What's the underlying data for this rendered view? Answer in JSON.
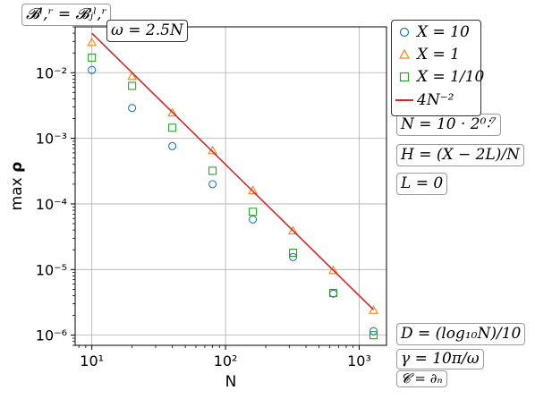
{
  "annotations": {
    "condition": "𝓑ˡ,ʳ = 𝓑ⱼˡ,ʳ",
    "omega": "ω = 2.5N",
    "n_def": "N = 10 · 2⁰∶⁷",
    "h_def": "H = (X − 2L)/N",
    "l_def": "L = 0",
    "d_def": "D = (log₁₀N)/10",
    "gamma_def": "γ = 10π/ω",
    "c_def": "𝓒 = ∂ₙ"
  },
  "legend": {
    "x10": "X = 10",
    "x1": "X = 1",
    "x01": "X = 1/10",
    "fit": "4N⁻²"
  },
  "colors": {
    "x10": "#1f77b4",
    "x1": "#ff7f0e",
    "x01": "#2ca02c",
    "fit": "#d62728",
    "grid": "#b0b0b0"
  },
  "chart_data": {
    "type": "scatter",
    "xlabel": "N",
    "ylabel": "max ρ",
    "xscale": "log",
    "yscale": "log",
    "xlim": [
      7.5,
      1600
    ],
    "ylim": [
      7e-07,
      0.05
    ],
    "grid": true,
    "legend_position": "top-right",
    "x_ticks": [
      {
        "value": 10,
        "label": "10¹"
      },
      {
        "value": 100,
        "label": "10²"
      },
      {
        "value": 1000,
        "label": "10³"
      }
    ],
    "y_ticks": [
      {
        "value": 0.01,
        "label": "10⁻²"
      },
      {
        "value": 0.001,
        "label": "10⁻³"
      },
      {
        "value": 0.0001,
        "label": "10⁻⁴"
      },
      {
        "value": 1e-05,
        "label": "10⁻⁵"
      },
      {
        "value": 1e-06,
        "label": "10⁻⁶"
      }
    ],
    "x": [
      10,
      20,
      40,
      80,
      160,
      320,
      640,
      1280
    ],
    "series": [
      {
        "name": "X = 10",
        "marker": "circle",
        "color": "#1f77b4",
        "values": [
          0.011,
          0.0029,
          0.00076,
          0.0002,
          5.8e-05,
          1.55e-05,
          4.3e-06,
          1.15e-06
        ]
      },
      {
        "name": "X = 1",
        "marker": "triangle",
        "color": "#ff7f0e",
        "values": [
          0.029,
          0.0088,
          0.00245,
          0.00065,
          0.00016,
          3.9e-05,
          9.7e-06,
          2.4e-06
        ]
      },
      {
        "name": "X = 1/10",
        "marker": "square",
        "color": "#2ca02c",
        "values": [
          0.017,
          0.0063,
          0.00145,
          0.00032,
          7.6e-05,
          1.8e-05,
          4.4e-06,
          1e-06
        ]
      },
      {
        "name": "4N⁻²",
        "marker": "line",
        "color": "#d62728",
        "x": [
          10,
          1280
        ],
        "values": [
          0.04,
          2.44e-06
        ]
      }
    ]
  }
}
